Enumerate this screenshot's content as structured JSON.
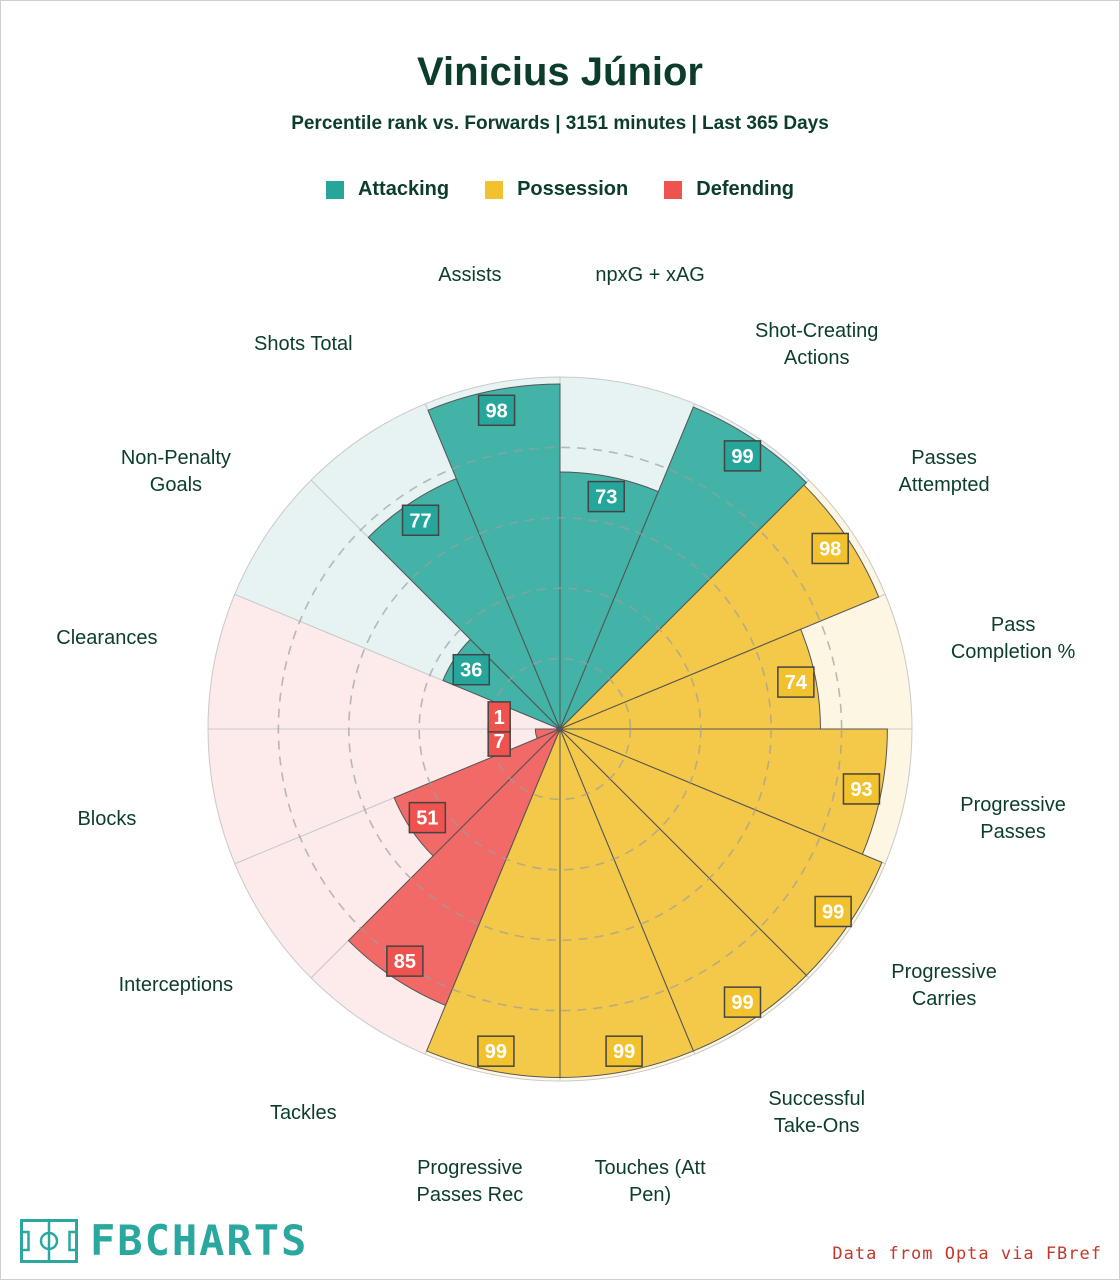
{
  "header": {
    "title": "Vinicius Júnior",
    "subtitle": "Percentile rank vs. Forwards | 3151 minutes | Last 365 Days"
  },
  "legend": [
    {
      "label": "Attacking",
      "color": "#26a69a"
    },
    {
      "label": "Possession",
      "color": "#f2c12e"
    },
    {
      "label": "Defending",
      "color": "#ef5350"
    }
  ],
  "chart_data": {
    "type": "radial-bar",
    "title": "Vinicius Júnior",
    "subtitle": "Percentile rank vs. Forwards | 3151 minutes | Last 365 Days",
    "scale": [
      0,
      100
    ],
    "gridlines": [
      20,
      40,
      60,
      80
    ],
    "categories": [
      {
        "label": "npxG + xAG",
        "value": 73,
        "group": "Attacking"
      },
      {
        "label": "Shot-Creating Actions",
        "value": 99,
        "group": "Attacking"
      },
      {
        "label": "Passes Attempted",
        "value": 98,
        "group": "Possession"
      },
      {
        "label": "Pass Completion %",
        "value": 74,
        "group": "Possession"
      },
      {
        "label": "Progressive Passes",
        "value": 93,
        "group": "Possession"
      },
      {
        "label": "Progressive Carries",
        "value": 99,
        "group": "Possession"
      },
      {
        "label": "Successful Take-Ons",
        "value": 99,
        "group": "Possession"
      },
      {
        "label": "Touches (Att Pen)",
        "value": 99,
        "group": "Possession"
      },
      {
        "label": "Progressive Passes Rec",
        "value": 99,
        "group": "Possession"
      },
      {
        "label": "Tackles",
        "value": 85,
        "group": "Defending"
      },
      {
        "label": "Interceptions",
        "value": 51,
        "group": "Defending"
      },
      {
        "label": "Blocks",
        "value": 7,
        "group": "Defending"
      },
      {
        "label": "Clearances",
        "value": 1,
        "group": "Defending"
      },
      {
        "label": "Non-Penalty Goals",
        "value": 36,
        "group": "Attacking"
      },
      {
        "label": "Shots Total",
        "value": 77,
        "group": "Attacking"
      },
      {
        "label": "Assists",
        "value": 98,
        "group": "Attacking"
      }
    ],
    "colors": {
      "Attacking": {
        "fill": "#26a69a",
        "bg": "#e6f3f2"
      },
      "Possession": {
        "fill": "#f2c12e",
        "bg": "#fdf6e3"
      },
      "Defending": {
        "fill": "#ef5350",
        "bg": "#fdeaea"
      }
    }
  },
  "labels": [
    {
      "lines": [
        "npxG + xAG"
      ]
    },
    {
      "lines": [
        "Shot-Creating",
        "Actions"
      ]
    },
    {
      "lines": [
        "Passes",
        "Attempted"
      ]
    },
    {
      "lines": [
        "Pass",
        "Completion %"
      ]
    },
    {
      "lines": [
        "Progressive",
        "Passes"
      ]
    },
    {
      "lines": [
        "Progressive",
        "Carries"
      ]
    },
    {
      "lines": [
        "Successful",
        "Take-Ons"
      ]
    },
    {
      "lines": [
        "Touches (Att",
        "Pen)"
      ]
    },
    {
      "lines": [
        "Progressive",
        "Passes Rec"
      ]
    },
    {
      "lines": [
        "Tackles"
      ]
    },
    {
      "lines": [
        "Interceptions"
      ]
    },
    {
      "lines": [
        "Blocks"
      ]
    },
    {
      "lines": [
        "Clearances"
      ]
    },
    {
      "lines": [
        "Non-Penalty",
        "Goals"
      ]
    },
    {
      "lines": [
        "Shots Total"
      ]
    },
    {
      "lines": [
        "Assists"
      ]
    }
  ],
  "footer": {
    "logo_text": "FBCHARTS",
    "credit": "Data from Opta via FBref"
  }
}
